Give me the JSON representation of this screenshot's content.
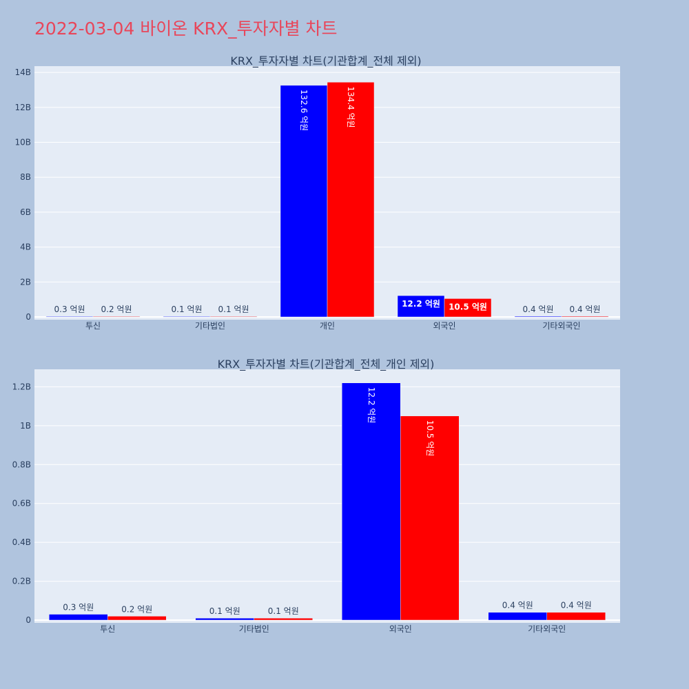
{
  "title": "2022-03-04 바이온 KRX_투자자별 차트",
  "colors": {
    "buy": "#0000ff",
    "sell": "#ff0000",
    "plot_bg": "#e5ecf6",
    "page_bg": "#b0c4de",
    "title": "#e8465a"
  },
  "chart_data": [
    {
      "type": "bar",
      "title": "KRX_투자자별 차트(기관합계_전체 제외)",
      "categories": [
        "투신",
        "기타법인",
        "개인",
        "외국인",
        "기타외국인"
      ],
      "series": [
        {
          "values": [
            30000000,
            10000000,
            13260000000,
            1220000000,
            40000000
          ],
          "labels": [
            "0.3 억원",
            "0.1 억원",
            "132.6 억원",
            "12.2 억원",
            "0.4 억원"
          ]
        },
        {
          "values": [
            20000000,
            10000000,
            13440000000,
            1050000000,
            40000000
          ],
          "labels": [
            "0.2 억원",
            "0.1 억원",
            "134.4 억원",
            "10.5 억원",
            "0.4 억원"
          ]
        }
      ],
      "yticks": [
        "0",
        "2B",
        "4B",
        "6B",
        "8B",
        "10B",
        "12B",
        "14B"
      ],
      "ytick_values": [
        0,
        2000000000,
        4000000000,
        6000000000,
        8000000000,
        10000000000,
        12000000000,
        14000000000
      ],
      "ylim": [
        0,
        14400000000
      ],
      "grid": true
    },
    {
      "type": "bar",
      "title": "KRX_투자자별 차트(기관합계_전체_개인 제외)",
      "categories": [
        "투신",
        "기타법인",
        "외국인",
        "기타외국인"
      ],
      "series": [
        {
          "values": [
            30000000,
            10000000,
            1220000000,
            40000000
          ],
          "labels": [
            "0.3 억원",
            "0.1 억원",
            "12.2 억원",
            "0.4 억원"
          ]
        },
        {
          "values": [
            20000000,
            10000000,
            1050000000,
            40000000
          ],
          "labels": [
            "0.2 억원",
            "0.1 억원",
            "10.5 억원",
            "0.4 억원"
          ]
        }
      ],
      "yticks": [
        "0",
        "0.2B",
        "0.4B",
        "0.6B",
        "0.8B",
        "1B",
        "1.2B"
      ],
      "ytick_values": [
        0,
        200000000,
        400000000,
        600000000,
        800000000,
        1000000000,
        1200000000
      ],
      "ylim": [
        0,
        1290000000
      ],
      "grid": true
    }
  ]
}
